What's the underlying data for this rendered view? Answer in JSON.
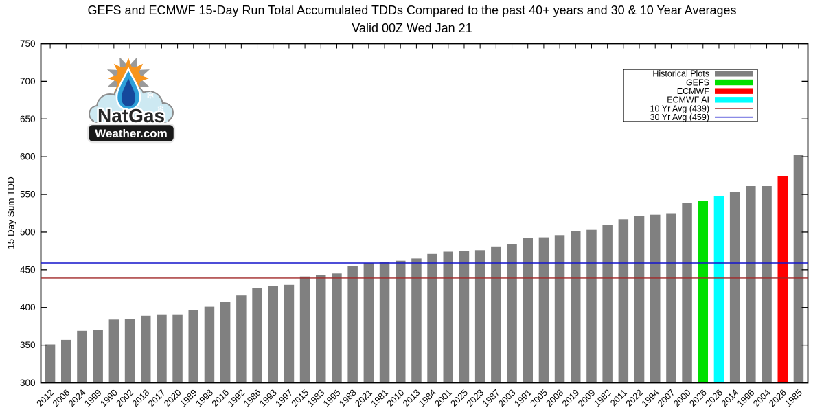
{
  "title": {
    "line1": "GEFS and ECMWF 15-Day Run Total Accumulated TDDs Compared to the past 40+ years and 30 & 10 Year Averages",
    "line2": "Valid 00Z Wed Jan 21"
  },
  "logo": {
    "line1": "NatGas",
    "line2": "Weather.com"
  },
  "chart_data": {
    "type": "bar",
    "title": "GEFS and ECMWF 15-Day Run Total Accumulated TDDs Compared to the past 40+ years and 30 & 10 Year Averages",
    "subtitle": "Valid 00Z Wed Jan 21",
    "xlabel": "",
    "ylabel": "15 Day Sum TDD",
    "ylim": [
      300,
      750
    ],
    "ytick_step": 50,
    "grid": false,
    "legend_position": "top-right",
    "colors": {
      "historical": "#808080",
      "gefs": "#00E000",
      "ecmwf": "#FF0000",
      "ecmwf_ai": "#00FFFF",
      "avg10": "#A02828",
      "avg30": "#1414CC",
      "frame": "#000000"
    },
    "bars": [
      {
        "label": "2012",
        "value": 351,
        "series": "historical"
      },
      {
        "label": "2006",
        "value": 357,
        "series": "historical"
      },
      {
        "label": "2024",
        "value": 369,
        "series": "historical"
      },
      {
        "label": "1999",
        "value": 370,
        "series": "historical"
      },
      {
        "label": "1990",
        "value": 384,
        "series": "historical"
      },
      {
        "label": "2002",
        "value": 385,
        "series": "historical"
      },
      {
        "label": "2018",
        "value": 389,
        "series": "historical"
      },
      {
        "label": "2017",
        "value": 390,
        "series": "historical"
      },
      {
        "label": "2020",
        "value": 390,
        "series": "historical"
      },
      {
        "label": "1989",
        "value": 397,
        "series": "historical"
      },
      {
        "label": "1998",
        "value": 401,
        "series": "historical"
      },
      {
        "label": "2016",
        "value": 407,
        "series": "historical"
      },
      {
        "label": "1992",
        "value": 416,
        "series": "historical"
      },
      {
        "label": "1986",
        "value": 426,
        "series": "historical"
      },
      {
        "label": "1993",
        "value": 428,
        "series": "historical"
      },
      {
        "label": "1997",
        "value": 430,
        "series": "historical"
      },
      {
        "label": "2015",
        "value": 441,
        "series": "historical"
      },
      {
        "label": "1983",
        "value": 443,
        "series": "historical"
      },
      {
        "label": "1995",
        "value": 445,
        "series": "historical"
      },
      {
        "label": "1988",
        "value": 455,
        "series": "historical"
      },
      {
        "label": "2021",
        "value": 459,
        "series": "historical"
      },
      {
        "label": "1981",
        "value": 460,
        "series": "historical"
      },
      {
        "label": "2010",
        "value": 462,
        "series": "historical"
      },
      {
        "label": "2013",
        "value": 465,
        "series": "historical"
      },
      {
        "label": "1984",
        "value": 471,
        "series": "historical"
      },
      {
        "label": "2001",
        "value": 474,
        "series": "historical"
      },
      {
        "label": "2025",
        "value": 475,
        "series": "historical"
      },
      {
        "label": "2023",
        "value": 476,
        "series": "historical"
      },
      {
        "label": "1987",
        "value": 481,
        "series": "historical"
      },
      {
        "label": "2003",
        "value": 484,
        "series": "historical"
      },
      {
        "label": "1991",
        "value": 492,
        "series": "historical"
      },
      {
        "label": "2005",
        "value": 493,
        "series": "historical"
      },
      {
        "label": "2008",
        "value": 496,
        "series": "historical"
      },
      {
        "label": "2019",
        "value": 501,
        "series": "historical"
      },
      {
        "label": "2009",
        "value": 503,
        "series": "historical"
      },
      {
        "label": "1982",
        "value": 510,
        "series": "historical"
      },
      {
        "label": "2011",
        "value": 517,
        "series": "historical"
      },
      {
        "label": "2022",
        "value": 521,
        "series": "historical"
      },
      {
        "label": "1994",
        "value": 523,
        "series": "historical"
      },
      {
        "label": "2007",
        "value": 525,
        "series": "historical"
      },
      {
        "label": "2000",
        "value": 539,
        "series": "historical"
      },
      {
        "label": "2026",
        "value": 541,
        "series": "gefs"
      },
      {
        "label": "2026",
        "value": 548,
        "series": "ecmwf_ai"
      },
      {
        "label": "2014",
        "value": 553,
        "series": "historical"
      },
      {
        "label": "1996",
        "value": 561,
        "series": "historical"
      },
      {
        "label": "2004",
        "value": 561,
        "series": "historical"
      },
      {
        "label": "2026",
        "value": 574,
        "series": "ecmwf"
      },
      {
        "label": "1985",
        "value": 602,
        "series": "historical"
      }
    ],
    "avg_lines": [
      {
        "name": "10 Yr Avg",
        "value": 439,
        "color_key": "avg10"
      },
      {
        "name": "30 Yr Avg",
        "value": 459,
        "color_key": "avg30"
      }
    ],
    "legend": [
      {
        "label": "Historical Plots",
        "swatch": "box",
        "color_key": "historical"
      },
      {
        "label": "GEFS",
        "swatch": "box",
        "color_key": "gefs"
      },
      {
        "label": "ECMWF",
        "swatch": "box",
        "color_key": "ecmwf"
      },
      {
        "label": "ECMWF AI",
        "swatch": "box",
        "color_key": "ecmwf_ai"
      },
      {
        "label": "10 Yr Avg (439)",
        "swatch": "line",
        "color_key": "avg10"
      },
      {
        "label": "30 Yr Avg (459)",
        "swatch": "line",
        "color_key": "avg30"
      }
    ]
  }
}
